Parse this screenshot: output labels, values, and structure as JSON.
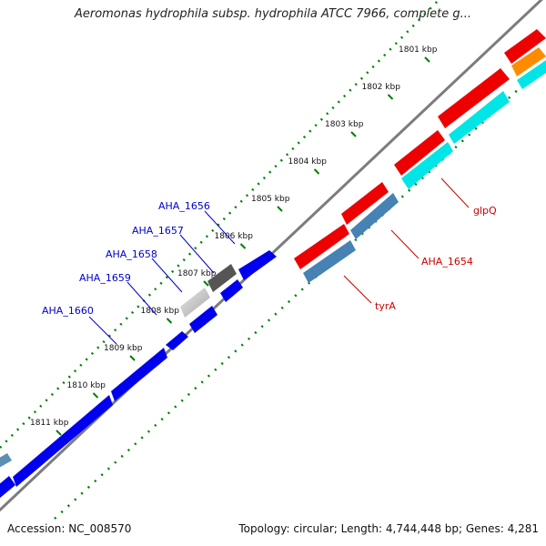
{
  "title": "Aeromonas hydrophila subsp. hydrophila ATCC 7966, complete g...",
  "footer": {
    "accession": "Accession: NC_008570",
    "summary": "Topology: circular; Length: 4,744,448 bp; Genes: 4,281"
  },
  "colors": {
    "backbone": "#808080",
    "tick": "#008000",
    "blue_gene": "#0000ee",
    "red_gene": "#ee0000",
    "cyan_gene": "#00e5e5",
    "steel_gene": "#4682b4",
    "orange_gene": "#ff8c00",
    "dark_gray_gene": "#555555",
    "light_gray_gene": "#c8c8c8",
    "label_blue": "#0000cc",
    "label_red": "#cc0000"
  },
  "ticks": [
    {
      "label": "1801 kbp"
    },
    {
      "label": "1802 kbp"
    },
    {
      "label": "1803 kbp"
    },
    {
      "label": "1804 kbp"
    },
    {
      "label": "1805 kbp"
    },
    {
      "label": "1806 kbp"
    },
    {
      "label": "1807 kbp"
    },
    {
      "label": "1808 kbp"
    },
    {
      "label": "1809 kbp"
    },
    {
      "label": "1810 kbp"
    },
    {
      "label": "1811 kbp"
    }
  ],
  "gene_labels": [
    {
      "id": "aha1656",
      "text": "AHA_1656",
      "color": "label_blue"
    },
    {
      "id": "aha1657",
      "text": "AHA_1657",
      "color": "label_blue"
    },
    {
      "id": "aha1658",
      "text": "AHA_1658",
      "color": "label_blue"
    },
    {
      "id": "aha1659",
      "text": "AHA_1659",
      "color": "label_blue"
    },
    {
      "id": "aha1660",
      "text": "AHA_1660",
      "color": "label_blue"
    },
    {
      "id": "glpq",
      "text": "glpQ",
      "color": "label_red"
    },
    {
      "id": "aha1654",
      "text": "AHA_1654",
      "color": "label_red"
    },
    {
      "id": "tyra",
      "text": "tyrA",
      "color": "label_red"
    }
  ]
}
